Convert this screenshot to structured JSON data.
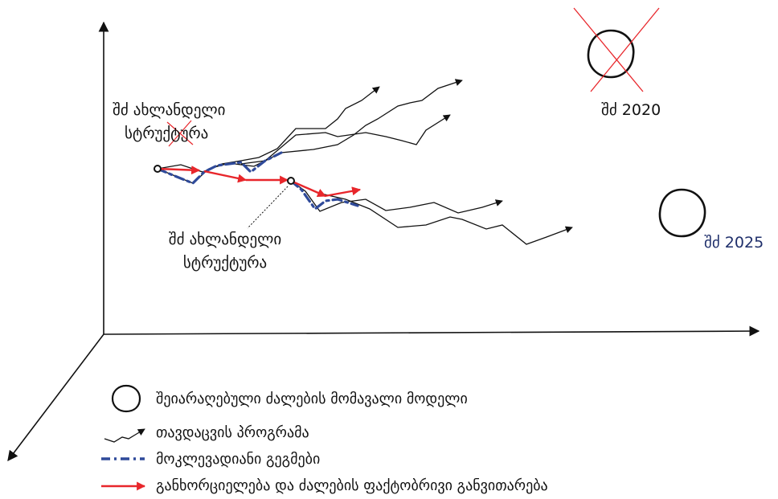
{
  "labels": {
    "current_structure_top_line1": "შძ ახლანდელი",
    "current_structure_top_line2": "სტრუქტურა",
    "current_structure_mid_line1": "შძ ახლანდელი",
    "current_structure_mid_line2": "სტრუქტურა",
    "target_2020": "შძ 2020",
    "target_2025": "შძ 2025"
  },
  "legend": {
    "future_model": "შეიარაღებული ძალების მომავალი მოდელი",
    "defense_programs": "თავდაცვის პროგრამა",
    "short_term_plans": "მოკლევადიანი გეგმები",
    "actual_development": "განხორციელება და ძალების ფაქტობრივი განვითარება"
  },
  "colors": {
    "axis": "#111111",
    "program_line": "#111111",
    "plan_dashdot": "#2f4a9a",
    "actual_arrow": "#e8262b",
    "cross_out": "#e8262b",
    "label_2025": "#1f2f6b"
  }
}
